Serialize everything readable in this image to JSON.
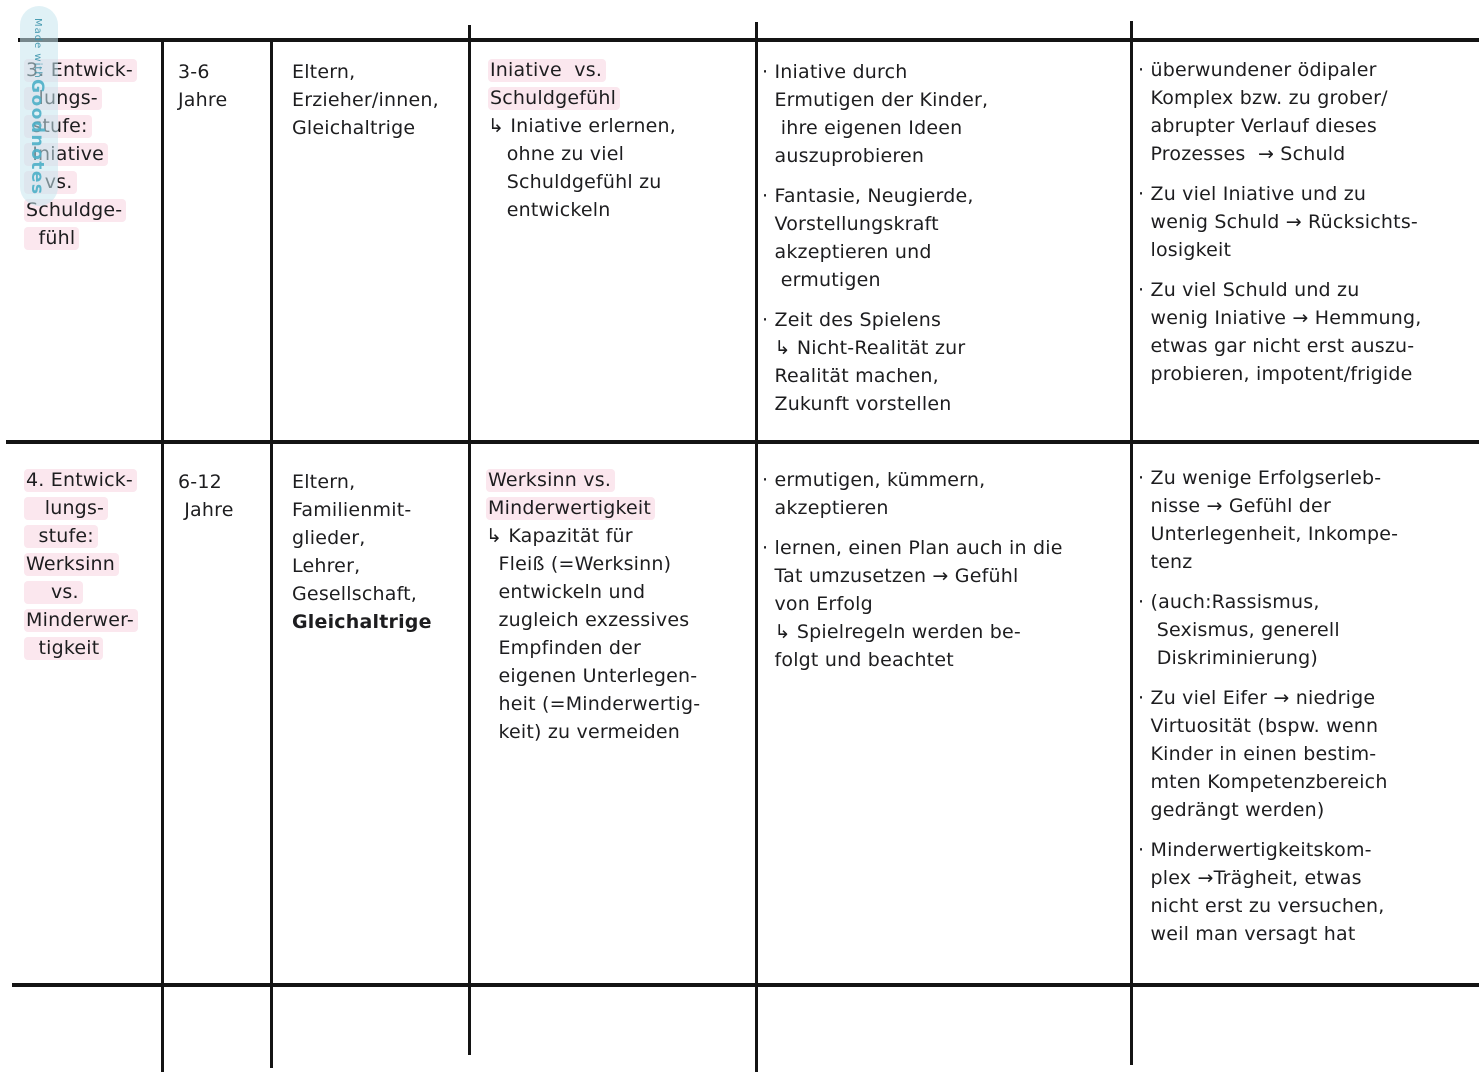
{
  "watermark": {
    "prefix": "Made with",
    "brand": "Goodnotes"
  },
  "colors": {
    "ink": "#1d1d1f",
    "table_border": "#141414",
    "highlight_pink": "#fbe7ee",
    "watermark_teal": "#4db0c8",
    "watermark_pill": "#c7e5ee"
  },
  "rows": [
    {
      "stage_lines": [
        "3. Entwick-",
        "  lungs-",
        " stufe:",
        " Iniative",
        "   vs.",
        "Schuldge-",
        "  fühl"
      ],
      "age_lines": [
        "3-6",
        "Jahre"
      ],
      "people_lines": [
        "Eltern,",
        "Erzieher/innen,",
        "Gleichaltrige"
      ],
      "people_bold": "",
      "conflict_header_lines": [
        "Iniative  vs.",
        "Schuldgefühl"
      ],
      "conflict_detail_lines": [
        "↳ Iniative erlernen,",
        "   ohne zu viel",
        "   Schuldgefühl zu",
        "   entwickeln"
      ],
      "support_groups": [
        [
          "· Iniative durch",
          "  Ermutigen der Kinder,",
          "   ihre eigenen Ideen",
          "  auszuprobieren"
        ],
        [
          "· Fantasie, Neugierde,",
          "  Vorstellungskraft",
          "  akzeptieren und",
          "   ermutigen"
        ],
        [
          "· Zeit des Spielens",
          "  ↳ Nicht-Realität zur",
          "  Realität machen,",
          "  Zukunft vorstellen"
        ]
      ],
      "outcome_groups": [
        [
          "· überwundener ödipaler",
          "  Komplex bzw. zu grober/",
          "  abrupter Verlauf dieses",
          "  Prozesses  → Schuld"
        ],
        [
          "· Zu viel Iniative und zu",
          "  wenig Schuld → Rücksichts-",
          "  losigkeit"
        ],
        [
          "· Zu viel Schuld und zu",
          "  wenig Iniative → Hemmung,",
          "  etwas gar nicht erst auszu-",
          "  probieren, impotent/frigide"
        ]
      ]
    },
    {
      "stage_lines": [
        "4. Entwick-",
        "   lungs-",
        "  stufe:",
        "Werksinn",
        "    vs.",
        "Minderwer-",
        "  tigkeit"
      ],
      "age_lines": [
        "6-12",
        " Jahre"
      ],
      "people_lines": [
        "Eltern,",
        "Familienmit-",
        "glieder,",
        "Lehrer,",
        "Gesellschaft,"
      ],
      "people_bold": "Gleichaltrige",
      "conflict_header_lines": [
        "Werksinn vs.",
        "Minderwertigkeit"
      ],
      "conflict_detail_lines": [
        "↳ Kapazität für",
        "  Fleiß (=Werksinn)",
        "  entwickeln und",
        "  zugleich exzessives",
        "  Empfinden der",
        "  eigenen Unterlegen-",
        "  heit (=Minderwertig-",
        "  keit) zu vermeiden"
      ],
      "support_groups": [
        [
          "· ermutigen, kümmern,",
          "  akzeptieren"
        ],
        [
          "· lernen, einen Plan auch in die",
          "  Tat umzusetzen → Gefühl",
          "  von Erfolg",
          "  ↳ Spielregeln werden be-",
          "  folgt und beachtet"
        ]
      ],
      "outcome_groups": [
        [
          "· Zu wenige Erfolgserleb-",
          "  nisse → Gefühl der",
          "  Unterlegenheit, Inkompe-",
          "  tenz"
        ],
        [
          "· (auch:Rassismus,",
          "   Sexismus, generell",
          "   Diskriminierung)"
        ],
        [
          "· Zu viel Eifer → niedrige",
          "  Virtuosität (bspw. wenn",
          "  Kinder in einen bestim-",
          "  mten Kompetenzbereich",
          "  gedrängt werden)"
        ],
        [
          "· Minderwertigkeitskom-",
          "  plex →Trägheit, etwas",
          "  nicht erst zu versuchen,",
          "  weil man versagt hat"
        ]
      ]
    }
  ]
}
